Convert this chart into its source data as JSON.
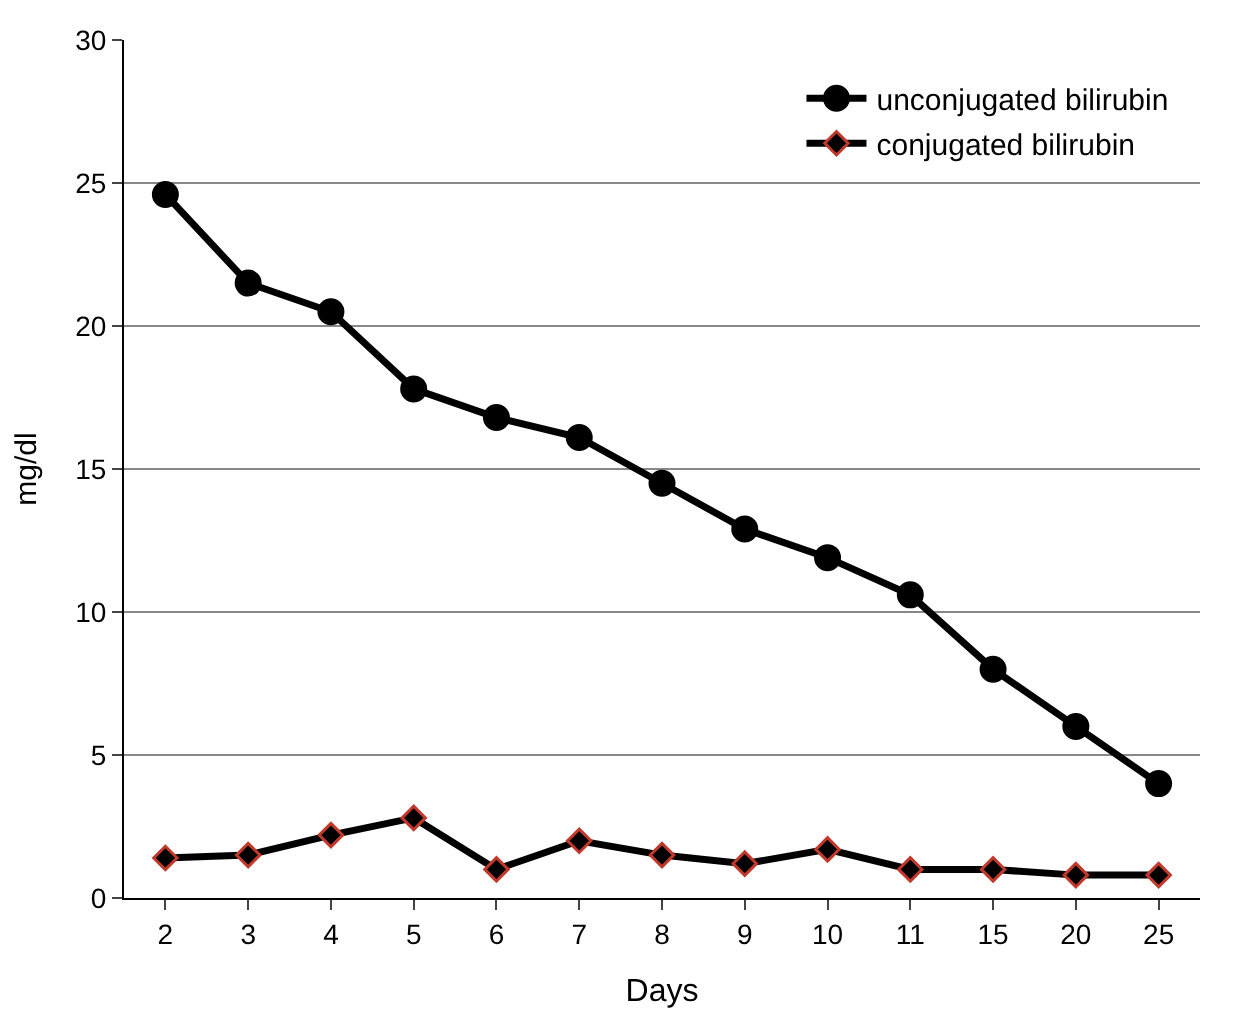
{
  "chart_data": {
    "type": "line",
    "xlabel": "Days",
    "ylabel": "mg/dl",
    "categories": [
      "2",
      "3",
      "4",
      "5",
      "6",
      "7",
      "8",
      "9",
      "10",
      "11",
      "15",
      "20",
      "25"
    ],
    "series": [
      {
        "name": "unconjugated bilirubin",
        "color": "#000000",
        "marker": "circle",
        "values": [
          24.6,
          21.5,
          20.5,
          17.8,
          16.8,
          16.1,
          14.5,
          12.9,
          11.9,
          10.6,
          8.0,
          6.0,
          4.0
        ]
      },
      {
        "name": "conjugated bilirubin",
        "color": "#000000",
        "marker": "diamond",
        "values": [
          1.4,
          1.5,
          2.2,
          2.8,
          1.0,
          2.0,
          1.5,
          1.2,
          1.7,
          1.0,
          1.0,
          0.8,
          0.8
        ]
      }
    ],
    "ylim": [
      0,
      30
    ],
    "yticks": [
      0,
      5,
      10,
      15,
      20,
      25,
      30
    ],
    "grid": "y",
    "legend": "top right",
    "line_style": "solid"
  }
}
